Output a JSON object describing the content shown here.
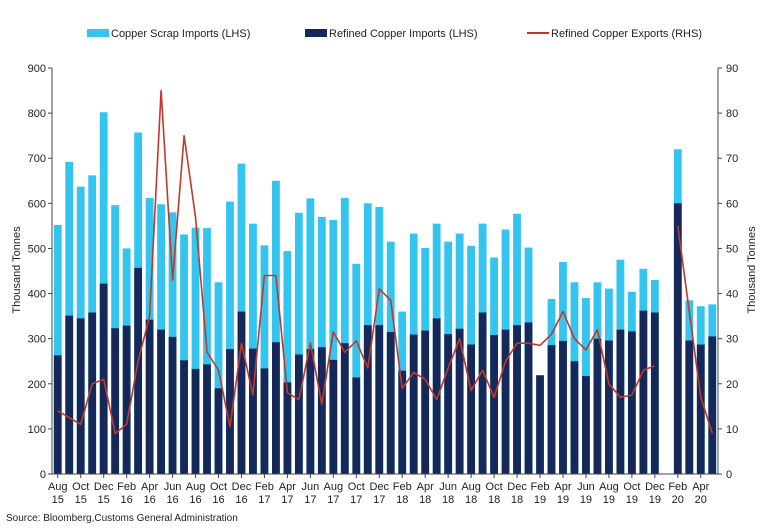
{
  "chart_data": {
    "type": "bar+line",
    "title": "",
    "ylabel_left": "Thousand Tonnes",
    "ylabel_right": "Thousand Tonnes",
    "ylim_left": [
      0,
      900
    ],
    "ylim_right": [
      0,
      90
    ],
    "yticks_left": [
      "0",
      "100",
      "200",
      "300",
      "400",
      "500",
      "600",
      "700",
      "800",
      "900"
    ],
    "yticks_right": [
      "0",
      "10",
      "20",
      "30",
      "40",
      "50",
      "60",
      "70",
      "80",
      "90"
    ],
    "grid": false,
    "legend_position": "top",
    "xtick_labels": [
      {
        "index": 0,
        "line1": "Aug",
        "line2": "15"
      },
      {
        "index": 2,
        "line1": "Oct",
        "line2": "15"
      },
      {
        "index": 4,
        "line1": "Dec",
        "line2": "15"
      },
      {
        "index": 6,
        "line1": "Feb",
        "line2": "16"
      },
      {
        "index": 8,
        "line1": "Apr",
        "line2": "16"
      },
      {
        "index": 10,
        "line1": "Jun",
        "line2": "16"
      },
      {
        "index": 12,
        "line1": "Aug",
        "line2": "16"
      },
      {
        "index": 14,
        "line1": "Oct",
        "line2": "16"
      },
      {
        "index": 16,
        "line1": "Dec",
        "line2": "16"
      },
      {
        "index": 18,
        "line1": "Feb",
        "line2": "17"
      },
      {
        "index": 20,
        "line1": "Apr",
        "line2": "17"
      },
      {
        "index": 22,
        "line1": "Jun",
        "line2": "17"
      },
      {
        "index": 24,
        "line1": "Aug",
        "line2": "17"
      },
      {
        "index": 26,
        "line1": "Oct",
        "line2": "17"
      },
      {
        "index": 28,
        "line1": "Dec",
        "line2": "17"
      },
      {
        "index": 30,
        "line1": "Feb",
        "line2": "18"
      },
      {
        "index": 32,
        "line1": "Apr",
        "line2": "18"
      },
      {
        "index": 34,
        "line1": "Jun",
        "line2": "18"
      },
      {
        "index": 36,
        "line1": "Aug",
        "line2": "18"
      },
      {
        "index": 38,
        "line1": "Oct",
        "line2": "18"
      },
      {
        "index": 40,
        "line1": "Dec",
        "line2": "18"
      },
      {
        "index": 42,
        "line1": "Feb",
        "line2": "19"
      },
      {
        "index": 44,
        "line1": "Apr",
        "line2": "19"
      },
      {
        "index": 46,
        "line1": "Jun",
        "line2": "19"
      },
      {
        "index": 48,
        "line1": "Aug",
        "line2": "19"
      },
      {
        "index": 50,
        "line1": "Oct",
        "line2": "19"
      },
      {
        "index": 52,
        "line1": "Dec",
        "line2": "19"
      },
      {
        "index": 54,
        "line1": "Feb",
        "line2": "20"
      },
      {
        "index": 56,
        "line1": "Apr",
        "line2": "20"
      }
    ],
    "series": [
      {
        "name": "Copper Scrap Imports (LHS)",
        "axis": "left",
        "type": "stacked-bar-total",
        "color": "#33c4f0",
        "values": [
          552,
          692,
          637,
          662,
          802,
          596,
          500,
          757,
          612,
          598,
          580,
          531,
          546,
          545,
          425,
          604,
          688,
          555,
          507,
          650,
          494,
          579,
          611,
          570,
          563,
          612,
          466,
          600,
          592,
          515,
          360,
          533,
          501,
          555,
          515,
          533,
          506,
          555,
          480,
          542,
          577,
          502,
          null,
          388,
          470,
          425,
          390,
          425,
          411,
          475,
          404,
          455,
          430,
          null,
          720,
          385,
          372,
          376
        ]
      },
      {
        "name": "Refined Copper Imports (LHS)",
        "axis": "left",
        "type": "stacked-bar-base",
        "color": "#14285a",
        "values": [
          263,
          351,
          345,
          358,
          422,
          323,
          329,
          457,
          342,
          320,
          304,
          252,
          233,
          243,
          190,
          277,
          360,
          278,
          234,
          292,
          203,
          265,
          277,
          281,
          253,
          290,
          214,
          330,
          330,
          315,
          229,
          309,
          318,
          345,
          310,
          322,
          287,
          358,
          308,
          320,
          330,
          336,
          219,
          286,
          295,
          250,
          217,
          300,
          296,
          320,
          316,
          362,
          358,
          null,
          600,
          296,
          287,
          305
        ]
      },
      {
        "name": "Refined Copper Exports (RHS)",
        "axis": "right",
        "type": "line",
        "color": "#c0392b",
        "values": [
          14,
          12.5,
          11,
          20,
          21,
          9,
          11,
          25,
          35,
          85,
          43,
          75,
          57,
          27,
          23,
          10.5,
          29,
          17.5,
          44,
          44,
          18,
          16.5,
          29,
          15.5,
          31.5,
          27,
          29.5,
          23.5,
          41,
          38.5,
          19,
          22.5,
          21,
          16.5,
          23.5,
          30,
          18.5,
          23,
          17,
          25,
          29,
          29,
          28.5,
          31,
          36,
          30,
          27.5,
          32,
          20,
          17,
          17.5,
          23,
          24,
          null,
          55,
          36,
          17,
          9
        ]
      }
    ]
  },
  "source_text": "Source: Bloomberg,Customs General Administration"
}
